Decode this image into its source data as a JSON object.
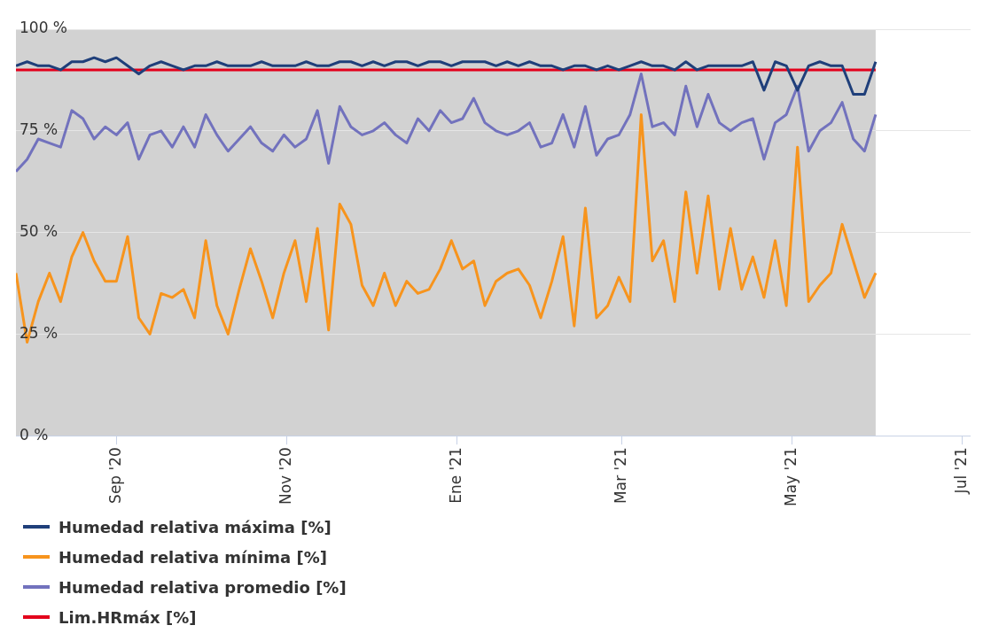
{
  "chart_data": {
    "type": "line",
    "x": [
      "2020-07-27",
      "2020-07-31",
      "2020-08-04",
      "2020-08-08",
      "2020-08-12",
      "2020-08-16",
      "2020-08-20",
      "2020-08-24",
      "2020-08-28",
      "2020-09-01",
      "2020-09-05",
      "2020-09-09",
      "2020-09-13",
      "2020-09-17",
      "2020-09-21",
      "2020-09-25",
      "2020-09-29",
      "2020-10-03",
      "2020-10-07",
      "2020-10-11",
      "2020-10-15",
      "2020-10-19",
      "2020-10-23",
      "2020-10-27",
      "2020-10-31",
      "2020-11-04",
      "2020-11-08",
      "2020-11-12",
      "2020-11-16",
      "2020-11-20",
      "2020-11-24",
      "2020-11-28",
      "2020-12-02",
      "2020-12-06",
      "2020-12-10",
      "2020-12-14",
      "2020-12-18",
      "2020-12-22",
      "2020-12-26",
      "2020-12-30",
      "2021-01-03",
      "2021-01-07",
      "2021-01-11",
      "2021-01-15",
      "2021-01-19",
      "2021-01-23",
      "2021-01-27",
      "2021-01-31",
      "2021-02-04",
      "2021-02-08",
      "2021-02-12",
      "2021-02-16",
      "2021-02-20",
      "2021-02-24",
      "2021-02-28",
      "2021-03-04",
      "2021-03-08",
      "2021-03-12",
      "2021-03-16",
      "2021-03-20",
      "2021-03-24",
      "2021-03-28",
      "2021-04-01",
      "2021-04-05",
      "2021-04-09",
      "2021-04-13",
      "2021-04-17",
      "2021-04-21",
      "2021-04-25",
      "2021-04-29",
      "2021-05-03",
      "2021-05-07",
      "2021-05-11",
      "2021-05-15",
      "2021-05-19",
      "2021-05-23",
      "2021-05-27",
      "2021-05-31"
    ],
    "series": [
      {
        "name": "Humedad relativa máxima [%]",
        "color": "#1f3f7a",
        "values": [
          91,
          92,
          91,
          91,
          90,
          92,
          92,
          93,
          92,
          93,
          91,
          89,
          91,
          92,
          91,
          90,
          91,
          91,
          92,
          91,
          91,
          91,
          92,
          91,
          91,
          91,
          92,
          91,
          91,
          92,
          92,
          91,
          92,
          91,
          92,
          92,
          91,
          92,
          92,
          91,
          92,
          92,
          92,
          91,
          92,
          91,
          92,
          91,
          91,
          90,
          91,
          91,
          90,
          91,
          90,
          91,
          92,
          91,
          91,
          90,
          92,
          90,
          91,
          91,
          91,
          91,
          92,
          85,
          92,
          91,
          85,
          91,
          92,
          91,
          91,
          84,
          84,
          92
        ]
      },
      {
        "name": "Humedad relativa mínima [%]",
        "color": "#f7941d",
        "values": [
          40,
          23,
          33,
          40,
          33,
          44,
          50,
          43,
          38,
          38,
          49,
          29,
          25,
          35,
          34,
          36,
          29,
          48,
          32,
          25,
          36,
          46,
          38,
          29,
          40,
          48,
          33,
          51,
          26,
          57,
          52,
          37,
          32,
          40,
          32,
          38,
          35,
          36,
          41,
          48,
          41,
          43,
          32,
          38,
          40,
          41,
          37,
          29,
          38,
          49,
          27,
          56,
          29,
          32,
          39,
          33,
          79,
          43,
          48,
          33,
          60,
          40,
          59,
          36,
          51,
          36,
          44,
          34,
          48,
          32,
          71,
          33,
          37,
          40,
          52,
          43,
          34,
          40
        ]
      },
      {
        "name": "Humedad relativa promedio [%]",
        "color": "#7272bd",
        "values": [
          65,
          68,
          73,
          72,
          71,
          80,
          78,
          73,
          76,
          74,
          77,
          68,
          74,
          75,
          71,
          76,
          71,
          79,
          74,
          70,
          73,
          76,
          72,
          70,
          74,
          71,
          73,
          80,
          67,
          81,
          76,
          74,
          75,
          77,
          74,
          72,
          78,
          75,
          80,
          77,
          78,
          83,
          77,
          75,
          74,
          75,
          77,
          71,
          72,
          79,
          71,
          81,
          69,
          73,
          74,
          79,
          89,
          76,
          77,
          74,
          86,
          76,
          84,
          77,
          75,
          77,
          78,
          68,
          77,
          79,
          86,
          70,
          75,
          77,
          82,
          73,
          70,
          79
        ]
      },
      {
        "name": "Lim.HRmáx [%]",
        "color": "#e3001b",
        "x": [
          "2020-07-27",
          "2021-05-31"
        ],
        "values": [
          90,
          90
        ]
      }
    ],
    "xlim": [
      "2020-07-27",
      "2021-07-04"
    ],
    "xticks": [
      {
        "value": "2020-09-01",
        "label": "Sep '20"
      },
      {
        "value": "2020-11-01",
        "label": "Nov '20"
      },
      {
        "value": "2021-01-01",
        "label": "Ene '21"
      },
      {
        "value": "2021-03-01",
        "label": "Mar '21"
      },
      {
        "value": "2021-05-01",
        "label": "May '21"
      },
      {
        "value": "2021-07-01",
        "label": "Jul '21"
      }
    ],
    "ylim": [
      0,
      100
    ],
    "yticks": [
      {
        "value": 0,
        "label": "0 %"
      },
      {
        "value": 25,
        "label": "25 %"
      },
      {
        "value": 50,
        "label": "50 %"
      },
      {
        "value": 75,
        "label": "75 %"
      },
      {
        "value": 100,
        "label": "100 %"
      }
    ],
    "bands": [
      {
        "axis": "x",
        "from": "2020-07-27",
        "to": "2021-05-31",
        "color": "#d2d2d2"
      }
    ],
    "grid": "y",
    "legend": "bottom",
    "marker": "none",
    "line_style": "solid"
  }
}
